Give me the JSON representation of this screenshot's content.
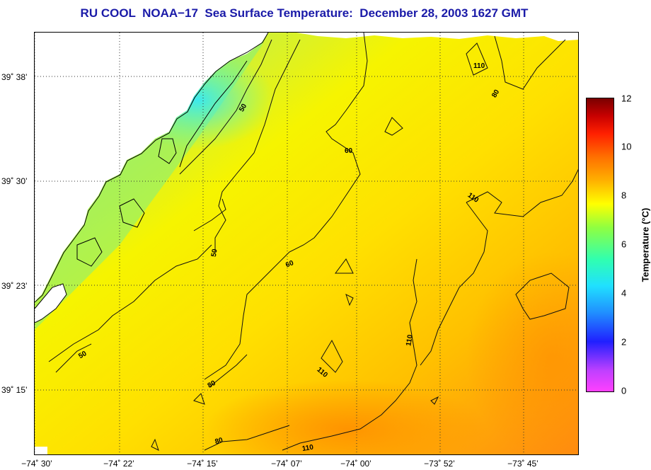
{
  "title": "RU COOL  NOAA−17  Sea Surface Temperature:  December 28, 2003 1627 GMT",
  "latitude_labels": [
    "39˚ 38’",
    "39˚ 30’",
    "39˚ 23’",
    "39˚ 15’"
  ],
  "longitude_labels": [
    "−74˚ 30’",
    "−74˚ 22’",
    "−74˚ 15’",
    "−74˚ 07’",
    "−74˚ 00’",
    "−73˚ 52’",
    "−73˚ 45’"
  ],
  "contour_labels": [
    "50",
    "50",
    "50",
    "60",
    "60",
    "80",
    "80",
    "80",
    "110",
    "110",
    "110",
    "110",
    "110",
    "80"
  ],
  "colorbar": {
    "label": "Temperature (°C)",
    "ticks": [
      "0",
      "2",
      "4",
      "6",
      "8",
      "10",
      "12"
    ],
    "min": 0,
    "max": 12
  },
  "colors": {
    "title": "#1a1aa8",
    "land": "#ffffff",
    "contour": "#000000"
  }
}
